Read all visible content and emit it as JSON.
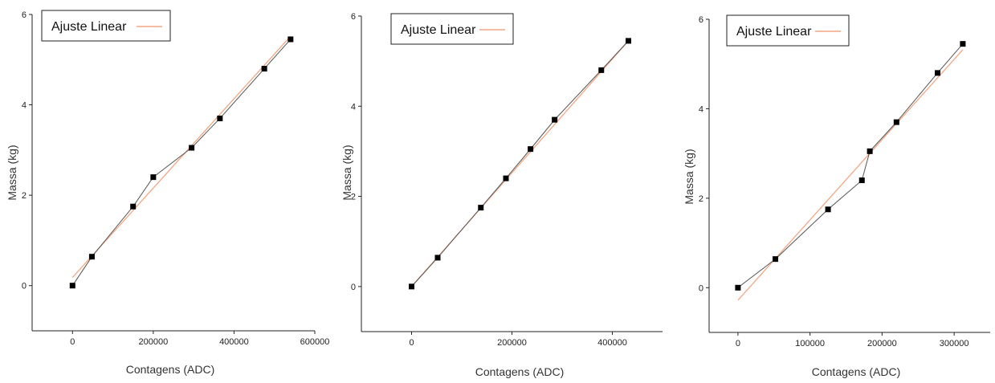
{
  "chart_data": [
    {
      "type": "line",
      "xlabel": "Contagens (ADC)",
      "ylabel": "Massa (kg)",
      "xlim": [
        -100000,
        600000
      ],
      "ylim": [
        -1,
        6
      ],
      "xticks": [
        0,
        200000,
        400000,
        600000
      ],
      "yticks": [
        0,
        2,
        4,
        6
      ],
      "legend": {
        "label": "Ajuste Linear",
        "placement": "top-left",
        "color": "#f4a582"
      },
      "series": [
        {
          "x": [
            0,
            48000,
            150000,
            200000,
            295000,
            365000,
            475000,
            540000
          ],
          "y": [
            0,
            0.64,
            1.75,
            2.4,
            3.05,
            3.7,
            4.8,
            5.45
          ],
          "style": "markers-line",
          "color": "#000000"
        }
      ],
      "fit": {
        "x": [
          0,
          540000
        ],
        "y": [
          0.18,
          5.52
        ],
        "color": "#f4a582"
      }
    },
    {
      "type": "line",
      "xlabel": "Contagens (ADC)",
      "ylabel": "Massa (kg)",
      "xlim": [
        -100000,
        500000
      ],
      "ylim": [
        -1,
        6
      ],
      "xticks": [
        0,
        200000,
        400000
      ],
      "yticks": [
        0,
        2,
        4,
        6
      ],
      "legend": {
        "label": "Ajuste Linear",
        "placement": "top-left",
        "color": "#f4a582"
      },
      "series": [
        {
          "x": [
            0,
            52000,
            138000,
            188000,
            237000,
            285000,
            378000,
            432000
          ],
          "y": [
            0,
            0.64,
            1.75,
            2.4,
            3.05,
            3.7,
            4.8,
            5.45
          ],
          "style": "markers-line",
          "color": "#000000"
        }
      ],
      "fit": {
        "x": [
          0,
          432000
        ],
        "y": [
          0.0,
          5.45
        ],
        "color": "#f4a582"
      }
    },
    {
      "type": "line",
      "xlabel": "Contagens (ADC)",
      "ylabel": "Massa (kg)",
      "xlim": [
        -40000,
        350000
      ],
      "ylim": [
        -1,
        6
      ],
      "xticks": [
        0,
        100000,
        200000,
        300000
      ],
      "yticks": [
        0,
        2,
        4,
        6
      ],
      "legend": {
        "label": "Ajuste Linear",
        "placement": "top-left",
        "color": "#f4a582"
      },
      "series": [
        {
          "x": [
            0,
            52000,
            125000,
            172000,
            183000,
            220000,
            277000,
            312000
          ],
          "y": [
            0,
            0.64,
            1.75,
            2.4,
            3.05,
            3.7,
            4.8,
            5.45
          ],
          "style": "markers-line",
          "color": "#000000"
        }
      ],
      "fit": {
        "x": [
          0,
          312000
        ],
        "y": [
          -0.28,
          5.32
        ],
        "color": "#f4a582"
      }
    }
  ]
}
